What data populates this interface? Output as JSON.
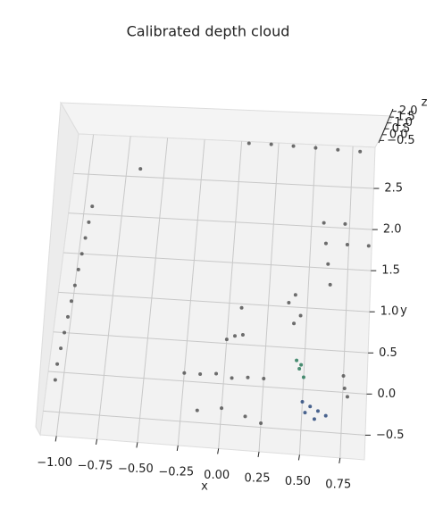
{
  "chart_data": {
    "type": "scatter3d",
    "title": "Calibrated depth cloud",
    "xlabel": "x",
    "ylabel": "y",
    "zlabel": "z",
    "xlim": [
      -1.1,
      0.9
    ],
    "ylim": [
      -0.8,
      3.0
    ],
    "zlim": [
      -0.7,
      2.2
    ],
    "xticks": [
      {
        "value": -1.0,
        "label": "−1.00"
      },
      {
        "value": -0.75,
        "label": "−0.75"
      },
      {
        "value": -0.5,
        "label": "−0.50"
      },
      {
        "value": -0.25,
        "label": "−0.25"
      },
      {
        "value": 0,
        "label": "0.00"
      },
      {
        "value": 0.25,
        "label": "0.25"
      },
      {
        "value": 0.5,
        "label": "0.50"
      },
      {
        "value": 0.75,
        "label": "0.75"
      }
    ],
    "yticks": [
      {
        "value": -0.5,
        "label": "−0.5"
      },
      {
        "value": 0,
        "label": "0.0"
      },
      0.5,
      {
        "value": 1,
        "label": "1.0"
      },
      1.5,
      {
        "value": 2,
        "label": "2.0"
      },
      2.5
    ],
    "zticks": [
      {
        "value": -0.5,
        "label": "−0.5"
      },
      {
        "value": 0,
        "label": "0.0"
      },
      0.5,
      {
        "value": 1,
        "label": "1.0"
      },
      1.5,
      {
        "value": 2,
        "label": "2.0"
      }
    ],
    "grid": true,
    "series": [
      {
        "color": "#555555",
        "x": [
          -0.95,
          -0.96,
          -0.97,
          -0.98,
          -0.99,
          -1.0,
          -1.01,
          -1.02,
          -1.03,
          -1.04,
          -1.05,
          -1.05,
          0.05,
          0.2,
          0.35,
          0.5,
          0.65,
          0.8,
          -0.66,
          0.58,
          0.6,
          0.62,
          0.64,
          0.72,
          0.74,
          0.42,
          0.46,
          0.38,
          0.42,
          0.88,
          0.05,
          0.1,
          0.0,
          0.08,
          -0.25,
          -0.15,
          -0.05,
          0.05,
          0.15,
          0.25,
          0.75,
          0.76,
          0.78,
          -0.15,
          0.0,
          0.15,
          0.25
        ],
        "y": [
          2.1,
          1.9,
          1.7,
          1.5,
          1.3,
          1.1,
          0.9,
          0.7,
          0.5,
          0.3,
          0.1,
          -0.1,
          2.98,
          2.98,
          2.97,
          2.96,
          2.95,
          2.94,
          2.6,
          2.05,
          1.8,
          1.55,
          1.3,
          2.05,
          1.8,
          1.15,
          0.9,
          1.05,
          0.8,
          1.8,
          0.6,
          0.62,
          0.55,
          0.95,
          0.1,
          0.1,
          0.12,
          0.08,
          0.1,
          0.1,
          0.2,
          0.05,
          -0.05,
          -0.35,
          -0.3,
          -0.38,
          -0.45
        ],
        "z": [
          1.0,
          1.0,
          0.9,
          0.9,
          0.8,
          0.8,
          0.7,
          0.7,
          0.6,
          0.6,
          0.5,
          0.5,
          2.0,
          2.0,
          2.0,
          2.0,
          2.0,
          2.0,
          1.5,
          1.2,
          1.1,
          1.0,
          0.9,
          1.2,
          1.1,
          0.8,
          0.7,
          0.8,
          0.7,
          1.1,
          0.5,
          0.5,
          0.5,
          0.6,
          0.3,
          0.3,
          0.3,
          0.3,
          0.3,
          0.3,
          0.4,
          0.3,
          0.3,
          0.0,
          0.0,
          0.0,
          0.0
        ]
      },
      {
        "color": "#2a7a5a",
        "x": [
          0.45,
          0.47,
          0.5,
          0.48
        ],
        "y": [
          0.35,
          0.25,
          0.15,
          0.3
        ],
        "z": [
          0.4,
          0.4,
          0.3,
          0.4
        ]
      },
      {
        "color": "#2c4a7c",
        "x": [
          0.5,
          0.55,
          0.6,
          0.65,
          0.58,
          0.52
        ],
        "y": [
          -0.15,
          -0.2,
          -0.25,
          -0.3,
          -0.35,
          -0.28
        ],
        "z": [
          0.1,
          0.1,
          0.1,
          0.1,
          0.0,
          0.0
        ]
      }
    ]
  }
}
